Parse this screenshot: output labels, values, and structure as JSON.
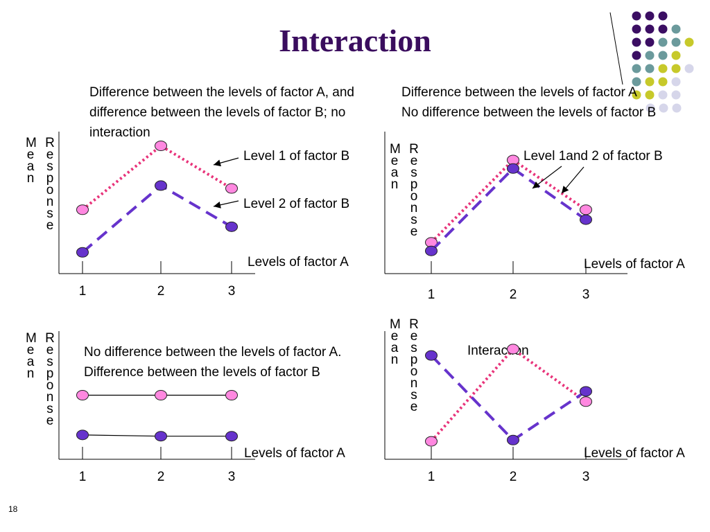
{
  "title": "Interaction",
  "slide_number": "18",
  "y_label": {
    "left": [
      "M",
      "e",
      "a",
      "n"
    ],
    "right": [
      "R",
      "e",
      "s",
      "p",
      "o",
      "n",
      "s",
      "e"
    ]
  },
  "colors": {
    "level1": "#e8337a",
    "level1_fill": "#ff88e0",
    "level2": "#6633cc",
    "level2_fill": "#6633cc",
    "title": "#3a0d5e"
  },
  "panels": [
    {
      "id": "p1",
      "caption": [
        "Difference between the levels of factor A, and",
        "difference between the levels of factor B; no",
        "interaction"
      ],
      "labels": [
        "Level 1 of factor B",
        "Level 2 of factor B"
      ],
      "xlabel": "Levels of factor A"
    },
    {
      "id": "p2",
      "caption": [
        "Difference between the levels of factor A",
        "No difference between the levels of factor B"
      ],
      "labels": [
        "Level 1and 2 of  factor B"
      ],
      "xlabel": "Levels of factor A"
    },
    {
      "id": "p3",
      "caption": [
        "No difference between the levels of factor A.",
        "Difference between the levels of factor B"
      ],
      "labels": [],
      "xlabel": "Levels of factor A"
    },
    {
      "id": "p4",
      "caption": [],
      "labels": [
        "Interaction"
      ],
      "xlabel": "Levels of factor A"
    }
  ],
  "chart_data": [
    {
      "type": "line",
      "categories": [
        "1",
        "2",
        "3"
      ],
      "xlabel": "Levels of factor A",
      "ylabel": "Mean Response",
      "ylim": [
        0,
        10
      ],
      "series": [
        {
          "name": "Level 1 of factor B",
          "values": [
            4.5,
            9.0,
            6.0
          ],
          "style": "dotted"
        },
        {
          "name": "Level 2 of factor B",
          "values": [
            1.5,
            6.2,
            3.3
          ],
          "style": "dashed"
        }
      ]
    },
    {
      "type": "line",
      "categories": [
        "1",
        "2",
        "3"
      ],
      "xlabel": "Levels of factor A",
      "ylabel": "Mean Response",
      "ylim": [
        0,
        10
      ],
      "series": [
        {
          "name": "Level 1and 2 of  factor B",
          "values": [
            2.2,
            8.0,
            4.5
          ],
          "style": "dotted"
        },
        {
          "name": "Level 1and 2 of  factor B",
          "values": [
            1.6,
            7.4,
            3.8
          ],
          "style": "dashed"
        }
      ]
    },
    {
      "type": "line",
      "categories": [
        "1",
        "2",
        "3"
      ],
      "xlabel": "Levels of factor A",
      "ylabel": "Mean Response",
      "ylim": [
        0,
        10
      ],
      "series": [
        {
          "values": [
            5.0,
            5.0,
            5.0
          ],
          "style": "solid"
        },
        {
          "values": [
            1.9,
            1.8,
            1.8
          ],
          "style": "solid"
        }
      ]
    },
    {
      "type": "line",
      "categories": [
        "1",
        "2",
        "3"
      ],
      "xlabel": "Levels of factor A",
      "ylabel": "Mean Response",
      "ylim": [
        0,
        10
      ],
      "series": [
        {
          "values": [
            1.4,
            8.6,
            4.5
          ],
          "style": "dotted"
        },
        {
          "values": [
            8.1,
            1.5,
            5.3
          ],
          "style": "dashed"
        }
      ]
    }
  ]
}
